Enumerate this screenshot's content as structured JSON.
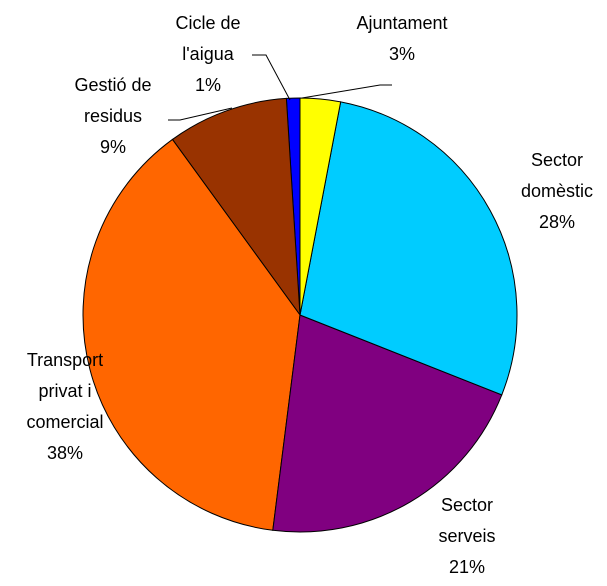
{
  "chart_data": {
    "type": "pie",
    "categories": [
      "Ajuntament",
      "Sector domèstic",
      "Sector serveis",
      "Transport privat i comercial",
      "Gestió de residus",
      "Cicle de l'aigua"
    ],
    "values": [
      3,
      28,
      21,
      38,
      9,
      1
    ],
    "value_labels": [
      "3%",
      "28%",
      "21%",
      "38%",
      "9%",
      "1%"
    ],
    "colors": [
      "#ffff00",
      "#00ccff",
      "#800080",
      "#ff6600",
      "#993300",
      "#0000ff"
    ]
  }
}
